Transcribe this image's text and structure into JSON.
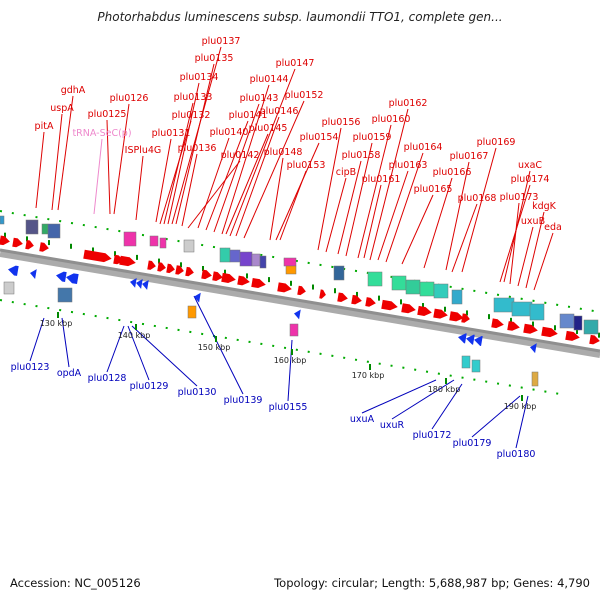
{
  "title": "Photorhabdus luminescens subsp. laumondii TTO1, complete gen...",
  "footer": {
    "accession": "Accession: NC_005126",
    "summary": "Topology: circular; Length: 5,688,987 bp; Genes: 4,790"
  },
  "colors": {
    "forward_label": "#dd0000",
    "reverse_label": "#0000bb",
    "trna_label": "#ee88cc",
    "arrow_red": "#ee0000",
    "arrow_blue": "#1133ee",
    "tick": "#008800"
  },
  "kbp_ticks": [
    "130 kbp",
    "140 kbp",
    "150 kbp",
    "160 kbp",
    "170 kbp",
    "180 kbp",
    "190 kbp"
  ],
  "top_labels": [
    "plu0137",
    "plu0135",
    "plu0147",
    "plu0134",
    "plu0144",
    "gdhA",
    "plu0133",
    "plu0143",
    "plu0152",
    "plu0126",
    "plu0132",
    "plu0141",
    "plu0146",
    "plu0162",
    "uspA",
    "plu0125",
    "plu0160",
    "pitA",
    "plu0156",
    "tRNA-SeC(p)",
    "plu0131",
    "plu0140",
    "plu0145",
    "plu0159",
    "plu0169",
    "plu0164",
    "plu0136",
    "plu0154",
    "ISPlu4G",
    "plu0142",
    "plu0148",
    "plu0158",
    "plu0167",
    "uxaC",
    "plu0163",
    "plu0153",
    "plu0166",
    "cipB",
    "plu0161",
    "plu0174",
    "plu0165",
    "plu0173",
    "plu0168",
    "kdgK",
    "uxuB",
    "eda"
  ],
  "bottom_labels": [
    "plu0123",
    "opdA",
    "plu0128",
    "plu0129",
    "plu0130",
    "plu0139",
    "plu0155",
    "uxuA",
    "uxuR",
    "plu0172",
    "plu0179",
    "plu0180"
  ]
}
